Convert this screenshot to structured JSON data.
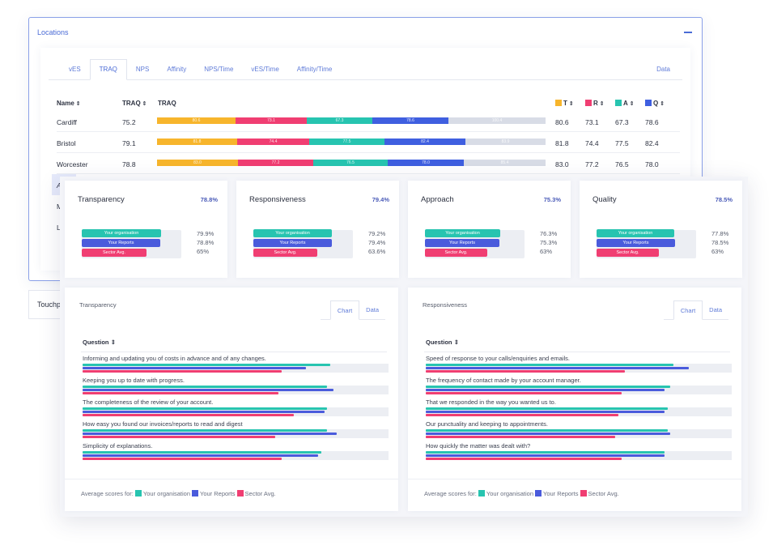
{
  "locations": {
    "title": "Locations",
    "tabs": [
      "vES",
      "TRAQ",
      "NPS",
      "Affinity",
      "NPS/Time",
      "vES/Time",
      "Affinity/Time"
    ],
    "active_tab": 1,
    "data_tab": "Data",
    "headers": {
      "name": "Name",
      "traq": "TRAQ",
      "traq_bar": "TRAQ",
      "t": "T",
      "r": "R",
      "a": "A",
      "q": "Q"
    },
    "sort_glyph": "⇕",
    "colors": {
      "t": "#f7b52c",
      "r": "#f03e72",
      "a": "#27c4b0",
      "q": "#3f5fe0",
      "rest": "#d8dce6"
    },
    "rows": [
      {
        "name": "Cardiff",
        "traq": "75.2",
        "t": "80.6",
        "r": "73.1",
        "a": "67.3",
        "q": "78.6",
        "seg": [
          "80.6",
          "73.1",
          "67.3",
          "78.6",
          "100.4"
        ]
      },
      {
        "name": "Bristol",
        "traq": "79.1",
        "t": "81.8",
        "r": "74.4",
        "a": "77.5",
        "q": "82.4",
        "seg": [
          "81.8",
          "74.4",
          "77.5",
          "82.4",
          "83.9"
        ]
      },
      {
        "name": "Worcester",
        "traq": "78.8",
        "t": "83.0",
        "r": "77.2",
        "a": "76.5",
        "q": "78.0",
        "seg": [
          "83.0",
          "77.2",
          "76.5",
          "78.0",
          "85.4"
        ]
      }
    ],
    "partial_names": [
      "A",
      "M",
      "Lo"
    ]
  },
  "touchpoints": {
    "label": "Touchp"
  },
  "metrics": [
    {
      "title": "Transparency",
      "value": "78.8%",
      "org": "79.9%",
      "reports": "78.8%",
      "sector": "65%",
      "org_frac": 0.8,
      "rep_frac": 0.79,
      "sec_frac": 0.65
    },
    {
      "title": "Responsiveness",
      "value": "79.4%",
      "org": "79.2%",
      "reports": "79.4%",
      "sector": "63.6%",
      "org_frac": 0.79,
      "rep_frac": 0.79,
      "sec_frac": 0.64
    },
    {
      "title": "Approach",
      "value": "75.3%",
      "org": "76.3%",
      "reports": "75.3%",
      "sector": "63%",
      "org_frac": 0.76,
      "rep_frac": 0.75,
      "sec_frac": 0.63
    },
    {
      "title": "Quality",
      "value": "78.5%",
      "org": "77.8%",
      "reports": "78.5%",
      "sector": "63%",
      "org_frac": 0.78,
      "rep_frac": 0.79,
      "sec_frac": 0.63
    }
  ],
  "bar_labels": {
    "org": "Your organisation",
    "reports": "Your Reports",
    "sector": "Sector Avg."
  },
  "series_colors": {
    "org": "#27c4b0",
    "reports": "#4a5bdc",
    "sector": "#f03e72"
  },
  "question_panels": [
    {
      "title": "Transparency",
      "tabs": [
        "Chart",
        "Data"
      ],
      "column": "Question",
      "questions": [
        {
          "text": "Informing and updating you of costs in advance and of any changes.",
          "org": 0.81,
          "rep": 0.73,
          "sec": 0.65
        },
        {
          "text": "Keeping you up to date with progress.",
          "org": 0.8,
          "rep": 0.82,
          "sec": 0.64
        },
        {
          "text": "The completeness of the review of your account.",
          "org": 0.8,
          "rep": 0.79,
          "sec": 0.69
        },
        {
          "text": "How easy you found our invoices/reports to read and digest",
          "org": 0.8,
          "rep": 0.83,
          "sec": 0.63
        },
        {
          "text": "Simplicity of explanations.",
          "org": 0.78,
          "rep": 0.77,
          "sec": 0.65
        }
      ]
    },
    {
      "title": "Responsiveness",
      "tabs": [
        "Chart",
        "Data"
      ],
      "column": "Question",
      "questions": [
        {
          "text": "Speed of response to your calls/enquiries and emails.",
          "org": 0.81,
          "rep": 0.86,
          "sec": 0.65
        },
        {
          "text": "The frequency of contact made by your account manager.",
          "org": 0.8,
          "rep": 0.78,
          "sec": 0.64
        },
        {
          "text": "That we responded in the way you wanted us to.",
          "org": 0.79,
          "rep": 0.78,
          "sec": 0.63
        },
        {
          "text": "Our punctuality and keeping to appointments.",
          "org": 0.79,
          "rep": 0.8,
          "sec": 0.62
        },
        {
          "text": "How quickly the matter was dealt with?",
          "org": 0.78,
          "rep": 0.78,
          "sec": 0.64
        }
      ]
    }
  ],
  "footer": {
    "prefix": "Average scores for:",
    "org": "Your organisation",
    "reports": "Your Reports",
    "sector": "Sector Avg."
  }
}
